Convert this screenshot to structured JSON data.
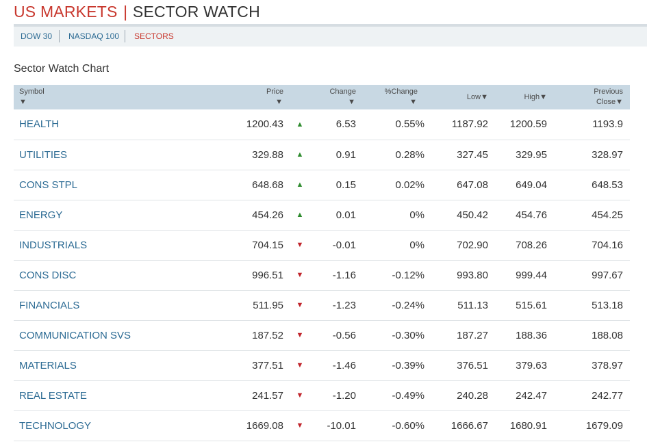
{
  "header": {
    "title_primary": "US MARKETS",
    "title_separator": "|",
    "title_secondary": "SECTOR WATCH"
  },
  "nav": {
    "items": [
      "DOW 30",
      "NASDAQ 100",
      "SECTORS"
    ],
    "active": "SECTORS"
  },
  "section_title": "Sector Watch Chart",
  "table": {
    "columns": {
      "symbol": "Symbol",
      "price": "Price",
      "change": "Change",
      "pct_change": "%Change",
      "low": "Low",
      "high": "High",
      "prev_close_line1": "Previous",
      "prev_close_line2": "Close",
      "sort_glyph": "▼"
    },
    "rows": [
      {
        "symbol": "HEALTH",
        "price": "1200.43",
        "direction": "up",
        "change": "6.53",
        "pct": "0.55%",
        "low": "1187.92",
        "high": "1200.59",
        "prev": "1193.9"
      },
      {
        "symbol": "UTILITIES",
        "price": "329.88",
        "direction": "up",
        "change": "0.91",
        "pct": "0.28%",
        "low": "327.45",
        "high": "329.95",
        "prev": "328.97"
      },
      {
        "symbol": "CONS STPL",
        "price": "648.68",
        "direction": "up",
        "change": "0.15",
        "pct": "0.02%",
        "low": "647.08",
        "high": "649.04",
        "prev": "648.53"
      },
      {
        "symbol": "ENERGY",
        "price": "454.26",
        "direction": "up",
        "change": "0.01",
        "pct": "0%",
        "low": "450.42",
        "high": "454.76",
        "prev": "454.25"
      },
      {
        "symbol": "INDUSTRIALS",
        "price": "704.15",
        "direction": "down",
        "change": "-0.01",
        "pct": "0%",
        "low": "702.90",
        "high": "708.26",
        "prev": "704.16"
      },
      {
        "symbol": "CONS DISC",
        "price": "996.51",
        "direction": "down",
        "change": "-1.16",
        "pct": "-0.12%",
        "low": "993.80",
        "high": "999.44",
        "prev": "997.67"
      },
      {
        "symbol": "FINANCIALS",
        "price": "511.95",
        "direction": "down",
        "change": "-1.23",
        "pct": "-0.24%",
        "low": "511.13",
        "high": "515.61",
        "prev": "513.18"
      },
      {
        "symbol": "COMMUNICATION SVS",
        "price": "187.52",
        "direction": "down",
        "change": "-0.56",
        "pct": "-0.30%",
        "low": "187.27",
        "high": "188.36",
        "prev": "188.08"
      },
      {
        "symbol": "MATERIALS",
        "price": "377.51",
        "direction": "down",
        "change": "-1.46",
        "pct": "-0.39%",
        "low": "376.51",
        "high": "379.63",
        "prev": "378.97"
      },
      {
        "symbol": "REAL ESTATE",
        "price": "241.57",
        "direction": "down",
        "change": "-1.20",
        "pct": "-0.49%",
        "low": "240.28",
        "high": "242.47",
        "prev": "242.77"
      },
      {
        "symbol": "TECHNOLOGY",
        "price": "1669.08",
        "direction": "down",
        "change": "-10.01",
        "pct": "-0.60%",
        "low": "1666.67",
        "high": "1680.91",
        "prev": "1679.09"
      }
    ]
  },
  "colors": {
    "brand_red": "#c8372d",
    "link_blue": "#2b6a93",
    "up_green": "#2e8b2e",
    "down_red": "#c0242b",
    "header_bg": "#c8d8e3"
  },
  "icons": {
    "up": "▲",
    "down": "▼"
  }
}
